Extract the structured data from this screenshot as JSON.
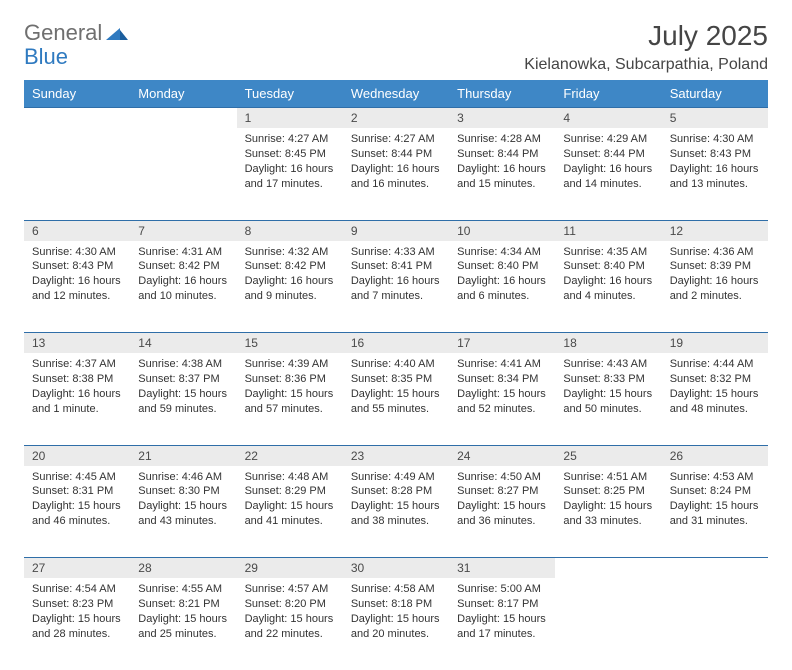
{
  "brand": {
    "word1": "General",
    "word2": "Blue",
    "text_color": "#6f6f6f",
    "accent_color": "#2f7ac0"
  },
  "title": "July 2025",
  "location": "Kielanowka, Subcarpathia, Poland",
  "colors": {
    "header_bg": "#3e87c6",
    "header_text": "#ffffff",
    "daynum_bg": "#ebebeb",
    "rule": "#2f6ea8",
    "body_text": "#333333"
  },
  "daysOfWeek": [
    "Sunday",
    "Monday",
    "Tuesday",
    "Wednesday",
    "Thursday",
    "Friday",
    "Saturday"
  ],
  "weeks": [
    [
      null,
      null,
      {
        "n": "1",
        "sr": "Sunrise: 4:27 AM",
        "ss": "Sunset: 8:45 PM",
        "dl": "Daylight: 16 hours and 17 minutes."
      },
      {
        "n": "2",
        "sr": "Sunrise: 4:27 AM",
        "ss": "Sunset: 8:44 PM",
        "dl": "Daylight: 16 hours and 16 minutes."
      },
      {
        "n": "3",
        "sr": "Sunrise: 4:28 AM",
        "ss": "Sunset: 8:44 PM",
        "dl": "Daylight: 16 hours and 15 minutes."
      },
      {
        "n": "4",
        "sr": "Sunrise: 4:29 AM",
        "ss": "Sunset: 8:44 PM",
        "dl": "Daylight: 16 hours and 14 minutes."
      },
      {
        "n": "5",
        "sr": "Sunrise: 4:30 AM",
        "ss": "Sunset: 8:43 PM",
        "dl": "Daylight: 16 hours and 13 minutes."
      }
    ],
    [
      {
        "n": "6",
        "sr": "Sunrise: 4:30 AM",
        "ss": "Sunset: 8:43 PM",
        "dl": "Daylight: 16 hours and 12 minutes."
      },
      {
        "n": "7",
        "sr": "Sunrise: 4:31 AM",
        "ss": "Sunset: 8:42 PM",
        "dl": "Daylight: 16 hours and 10 minutes."
      },
      {
        "n": "8",
        "sr": "Sunrise: 4:32 AM",
        "ss": "Sunset: 8:42 PM",
        "dl": "Daylight: 16 hours and 9 minutes."
      },
      {
        "n": "9",
        "sr": "Sunrise: 4:33 AM",
        "ss": "Sunset: 8:41 PM",
        "dl": "Daylight: 16 hours and 7 minutes."
      },
      {
        "n": "10",
        "sr": "Sunrise: 4:34 AM",
        "ss": "Sunset: 8:40 PM",
        "dl": "Daylight: 16 hours and 6 minutes."
      },
      {
        "n": "11",
        "sr": "Sunrise: 4:35 AM",
        "ss": "Sunset: 8:40 PM",
        "dl": "Daylight: 16 hours and 4 minutes."
      },
      {
        "n": "12",
        "sr": "Sunrise: 4:36 AM",
        "ss": "Sunset: 8:39 PM",
        "dl": "Daylight: 16 hours and 2 minutes."
      }
    ],
    [
      {
        "n": "13",
        "sr": "Sunrise: 4:37 AM",
        "ss": "Sunset: 8:38 PM",
        "dl": "Daylight: 16 hours and 1 minute."
      },
      {
        "n": "14",
        "sr": "Sunrise: 4:38 AM",
        "ss": "Sunset: 8:37 PM",
        "dl": "Daylight: 15 hours and 59 minutes."
      },
      {
        "n": "15",
        "sr": "Sunrise: 4:39 AM",
        "ss": "Sunset: 8:36 PM",
        "dl": "Daylight: 15 hours and 57 minutes."
      },
      {
        "n": "16",
        "sr": "Sunrise: 4:40 AM",
        "ss": "Sunset: 8:35 PM",
        "dl": "Daylight: 15 hours and 55 minutes."
      },
      {
        "n": "17",
        "sr": "Sunrise: 4:41 AM",
        "ss": "Sunset: 8:34 PM",
        "dl": "Daylight: 15 hours and 52 minutes."
      },
      {
        "n": "18",
        "sr": "Sunrise: 4:43 AM",
        "ss": "Sunset: 8:33 PM",
        "dl": "Daylight: 15 hours and 50 minutes."
      },
      {
        "n": "19",
        "sr": "Sunrise: 4:44 AM",
        "ss": "Sunset: 8:32 PM",
        "dl": "Daylight: 15 hours and 48 minutes."
      }
    ],
    [
      {
        "n": "20",
        "sr": "Sunrise: 4:45 AM",
        "ss": "Sunset: 8:31 PM",
        "dl": "Daylight: 15 hours and 46 minutes."
      },
      {
        "n": "21",
        "sr": "Sunrise: 4:46 AM",
        "ss": "Sunset: 8:30 PM",
        "dl": "Daylight: 15 hours and 43 minutes."
      },
      {
        "n": "22",
        "sr": "Sunrise: 4:48 AM",
        "ss": "Sunset: 8:29 PM",
        "dl": "Daylight: 15 hours and 41 minutes."
      },
      {
        "n": "23",
        "sr": "Sunrise: 4:49 AM",
        "ss": "Sunset: 8:28 PM",
        "dl": "Daylight: 15 hours and 38 minutes."
      },
      {
        "n": "24",
        "sr": "Sunrise: 4:50 AM",
        "ss": "Sunset: 8:27 PM",
        "dl": "Daylight: 15 hours and 36 minutes."
      },
      {
        "n": "25",
        "sr": "Sunrise: 4:51 AM",
        "ss": "Sunset: 8:25 PM",
        "dl": "Daylight: 15 hours and 33 minutes."
      },
      {
        "n": "26",
        "sr": "Sunrise: 4:53 AM",
        "ss": "Sunset: 8:24 PM",
        "dl": "Daylight: 15 hours and 31 minutes."
      }
    ],
    [
      {
        "n": "27",
        "sr": "Sunrise: 4:54 AM",
        "ss": "Sunset: 8:23 PM",
        "dl": "Daylight: 15 hours and 28 minutes."
      },
      {
        "n": "28",
        "sr": "Sunrise: 4:55 AM",
        "ss": "Sunset: 8:21 PM",
        "dl": "Daylight: 15 hours and 25 minutes."
      },
      {
        "n": "29",
        "sr": "Sunrise: 4:57 AM",
        "ss": "Sunset: 8:20 PM",
        "dl": "Daylight: 15 hours and 22 minutes."
      },
      {
        "n": "30",
        "sr": "Sunrise: 4:58 AM",
        "ss": "Sunset: 8:18 PM",
        "dl": "Daylight: 15 hours and 20 minutes."
      },
      {
        "n": "31",
        "sr": "Sunrise: 5:00 AM",
        "ss": "Sunset: 8:17 PM",
        "dl": "Daylight: 15 hours and 17 minutes."
      },
      null,
      null
    ]
  ]
}
